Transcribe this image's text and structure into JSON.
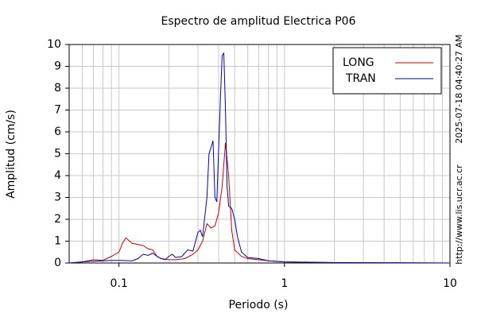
{
  "chart_data": {
    "type": "line",
    "title": "Espectro de amplitud Electrica P06",
    "x_label": "Periodo (s)",
    "y_label": "Amplitud (cm/s)",
    "annotations": [
      "2025-07-18 04:40:27 AM",
      "http://www.lis.ucr.ac.cr"
    ],
    "x_scale": "log",
    "xlim": [
      0.05,
      10
    ],
    "ylim": [
      0,
      10
    ],
    "xticks": [
      0.1,
      1,
      10
    ],
    "x_minor_ticks": [
      0.06,
      0.07,
      0.08,
      0.09,
      0.2,
      0.3,
      0.4,
      0.5,
      0.6,
      0.7,
      0.8,
      0.9,
      2,
      3,
      4,
      5,
      6,
      7,
      8,
      9
    ],
    "yticks": [
      0,
      1,
      2,
      3,
      4,
      5,
      6,
      7,
      8,
      9,
      10
    ],
    "grid": true,
    "legend_position": "upper right",
    "series": [
      {
        "name": "LONG",
        "color": "#cc0000",
        "x": [
          0.05,
          0.06,
          0.07,
          0.08,
          0.09,
          0.1,
          0.105,
          0.11,
          0.12,
          0.13,
          0.14,
          0.15,
          0.16,
          0.17,
          0.18,
          0.2,
          0.22,
          0.25,
          0.28,
          0.3,
          0.32,
          0.34,
          0.36,
          0.38,
          0.4,
          0.42,
          0.44,
          0.46,
          0.48,
          0.5,
          0.55,
          0.6,
          0.7,
          0.8,
          1,
          2,
          5,
          10
        ],
        "values": [
          0,
          0.05,
          0.15,
          0.12,
          0.3,
          0.5,
          0.9,
          1.15,
          0.9,
          0.85,
          0.8,
          0.65,
          0.6,
          0.3,
          0.2,
          0.15,
          0.15,
          0.2,
          0.4,
          0.6,
          1.0,
          1.8,
          1.6,
          1.7,
          2.3,
          3.5,
          5.5,
          4.0,
          1.5,
          0.6,
          0.3,
          0.2,
          0.15,
          0.1,
          0.05,
          0.02,
          0.01,
          0
        ]
      },
      {
        "name": "TRAN",
        "color": "#0000bb",
        "x": [
          0.05,
          0.06,
          0.07,
          0.08,
          0.09,
          0.1,
          0.12,
          0.13,
          0.14,
          0.15,
          0.16,
          0.17,
          0.18,
          0.19,
          0.2,
          0.21,
          0.22,
          0.24,
          0.26,
          0.28,
          0.3,
          0.31,
          0.32,
          0.34,
          0.35,
          0.36,
          0.37,
          0.38,
          0.39,
          0.41,
          0.42,
          0.43,
          0.44,
          0.45,
          0.46,
          0.48,
          0.5,
          0.52,
          0.55,
          0.6,
          0.7,
          0.8,
          1,
          2,
          5,
          10
        ],
        "values": [
          0,
          0.05,
          0.08,
          0.1,
          0.12,
          0.12,
          0.1,
          0.2,
          0.4,
          0.35,
          0.45,
          0.3,
          0.2,
          0.15,
          0.3,
          0.4,
          0.25,
          0.3,
          0.6,
          0.55,
          1.4,
          1.5,
          1.2,
          3.0,
          5.0,
          5.3,
          5.6,
          3.0,
          2.8,
          7.5,
          9.5,
          9.6,
          7.0,
          3.5,
          2.6,
          2.5,
          2.0,
          1.2,
          0.5,
          0.25,
          0.2,
          0.1,
          0.05,
          0.02,
          0.01,
          0
        ]
      }
    ]
  }
}
